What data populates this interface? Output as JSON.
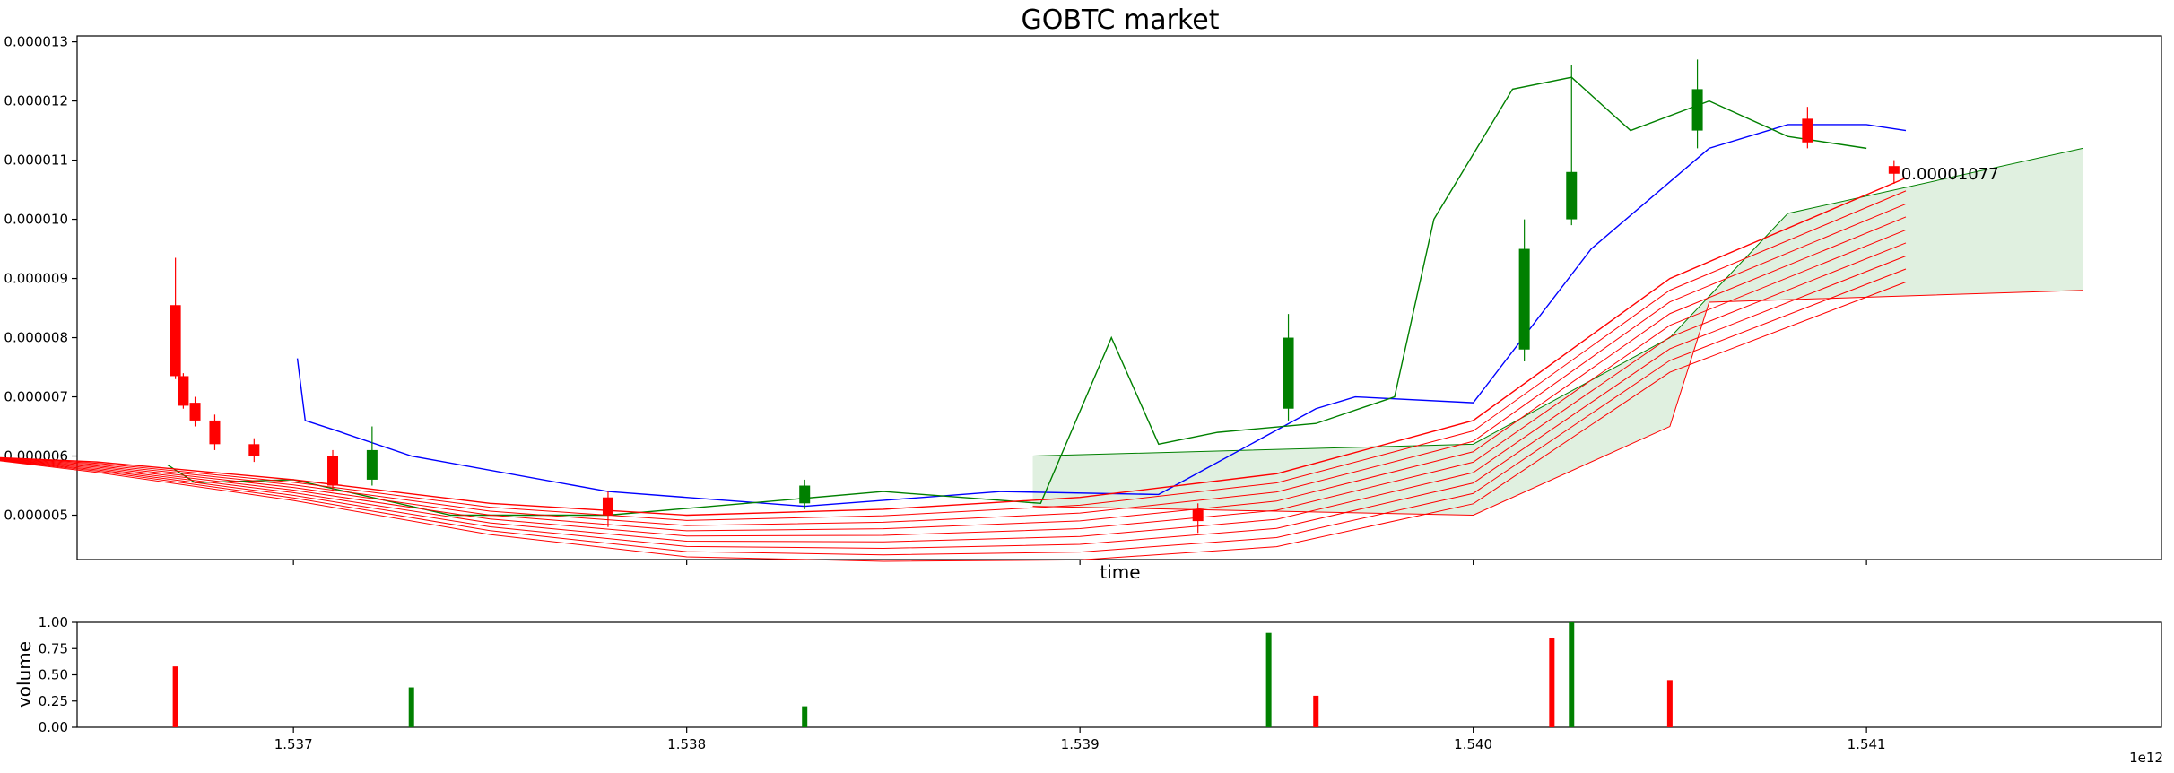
{
  "chart_data": [
    {
      "type": "candlestick",
      "title": "GOBTC market",
      "xlabel": "time",
      "ylabel": "",
      "x_unit": "ms epoch",
      "x_offset_label": "1e12",
      "xlim": [
        1536450000000.0,
        1541750000000.0
      ],
      "ylim": [
        4.25e-06,
        1.31e-05
      ],
      "xticks": [
        1537000000000.0,
        1538000000000.0,
        1539000000000.0,
        1540000000000.0,
        1541000000000.0
      ],
      "yticks": [
        {
          "v": 5e-06,
          "label": "0.000005"
        },
        {
          "v": 6e-06,
          "label": "0.000006"
        },
        {
          "v": 7e-06,
          "label": "0.000007"
        },
        {
          "v": 8e-06,
          "label": "0.000008"
        },
        {
          "v": 9e-06,
          "label": "0.000009"
        },
        {
          "v": 1e-05,
          "label": "0.000010"
        },
        {
          "v": 1.1e-05,
          "label": "0.000011"
        },
        {
          "v": 1.2e-05,
          "label": "0.000012"
        },
        {
          "v": 1.3e-05,
          "label": "0.000013"
        }
      ],
      "grid": false,
      "last_price_label": "0.00001077",
      "last_price_x": 1541070000000.0,
      "last_price_y": 1.077e-05,
      "colors": {
        "up": "#008000",
        "down": "#ff0000",
        "blue": "#0000ff",
        "green": "#008000",
        "red": "#ff0000",
        "brown": "#8b2500"
      },
      "candles_approx": [
        {
          "t": 1536700000000.0,
          "o": 8.55e-06,
          "c": 7.35e-06,
          "h": 9.35e-06,
          "l": 7.3e-06
        },
        {
          "t": 1536720000000.0,
          "o": 7.35e-06,
          "c": 6.85e-06,
          "h": 7.4e-06,
          "l": 6.8e-06
        },
        {
          "t": 1536750000000.0,
          "o": 6.9e-06,
          "c": 6.6e-06,
          "h": 7e-06,
          "l": 6.5e-06
        },
        {
          "t": 1536800000000.0,
          "o": 6.6e-06,
          "c": 6.2e-06,
          "h": 6.7e-06,
          "l": 6.1e-06
        },
        {
          "t": 1536900000000.0,
          "o": 6.2e-06,
          "c": 6e-06,
          "h": 6.3e-06,
          "l": 5.9e-06
        },
        {
          "t": 1537100000000.0,
          "o": 6e-06,
          "c": 5.5e-06,
          "h": 6.1e-06,
          "l": 5.4e-06
        },
        {
          "t": 1537200000000.0,
          "o": 5.6e-06,
          "c": 6.1e-06,
          "h": 6.5e-06,
          "l": 5.5e-06
        },
        {
          "t": 1537800000000.0,
          "o": 5.3e-06,
          "c": 5e-06,
          "h": 5.4e-06,
          "l": 4.8e-06
        },
        {
          "t": 1538300000000.0,
          "o": 5.2e-06,
          "c": 5.5e-06,
          "h": 5.6e-06,
          "l": 5.1e-06
        },
        {
          "t": 1539300000000.0,
          "o": 5.1e-06,
          "c": 4.9e-06,
          "h": 5.2e-06,
          "l": 4.7e-06
        },
        {
          "t": 1539530000000.0,
          "o": 6.8e-06,
          "c": 8e-06,
          "h": 8.4e-06,
          "l": 6.6e-06
        },
        {
          "t": 1540130000000.0,
          "o": 7.8e-06,
          "c": 9.5e-06,
          "h": 1e-05,
          "l": 7.6e-06
        },
        {
          "t": 1540250000000.0,
          "o": 1e-05,
          "c": 1.08e-05,
          "h": 1.26e-05,
          "l": 9.9e-06
        },
        {
          "t": 1540570000000.0,
          "o": 1.15e-05,
          "c": 1.22e-05,
          "h": 1.27e-05,
          "l": 1.12e-05
        },
        {
          "t": 1540850000000.0,
          "o": 1.17e-05,
          "c": 1.13e-05,
          "h": 1.19e-05,
          "l": 1.12e-05
        },
        {
          "t": 1541070000000.0,
          "o": 1.09e-05,
          "c": 1.077e-05,
          "h": 1.1e-05,
          "l": 1.06e-05
        }
      ],
      "series": [
        {
          "color": "blue",
          "x": [
            1537010000000.0,
            1537030000000.0,
            1537100000000.0,
            1537300000000.0,
            1537800000000.0,
            1538300000000.0,
            1538800000000.0,
            1539200000000.0,
            1539600000000.0,
            1539700000000.0,
            1540000000000.0,
            1540300000000.0,
            1540600000000.0,
            1540800000000.0,
            1541000000000.0,
            1541100000000.0
          ],
          "y": [
            7.65e-06,
            6.6e-06,
            6.45e-06,
            6e-06,
            5.4e-06,
            5.15e-06,
            5.4e-06,
            5.35e-06,
            6.8e-06,
            7e-06,
            6.9e-06,
            9.5e-06,
            1.12e-05,
            1.16e-05,
            1.16e-05,
            1.15e-05
          ]
        },
        {
          "color": "green",
          "x": [
            1536680000000.0,
            1536750000000.0,
            1537000000000.0,
            1537400000000.0,
            1537800000000.0,
            1538500000000.0,
            1538900000000.0,
            1539080000000.0,
            1539200000000.0,
            1539350000000.0,
            1539600000000.0,
            1539800000000.0,
            1539900000000.0,
            1540100000000.0,
            1540250000000.0,
            1540400000000.0,
            1540600000000.0,
            1540800000000.0,
            1541000000000.0
          ],
          "y": [
            5.85e-06,
            5.55e-06,
            5.6e-06,
            5e-06,
            5e-06,
            5.4e-06,
            5.2e-06,
            8e-06,
            6.2e-06,
            6.4e-06,
            6.55e-06,
            7e-06,
            1e-05,
            1.22e-05,
            1.24e-05,
            1.15e-05,
            1.2e-05,
            1.14e-05,
            1.12e-05
          ]
        },
        {
          "color": "red",
          "x": [
            1536150000000.0,
            1536500000000.0,
            1537000000000.0,
            1537500000000.0,
            1538000000000.0,
            1538500000000.0,
            1539000000000.0,
            1539500000000.0,
            1540000000000.0,
            1540500000000.0,
            1541100000000.0
          ],
          "y": [
            6e-06,
            5.9e-06,
            5.6e-06,
            5.2e-06,
            5e-06,
            5.1e-06,
            5.3e-06,
            5.7e-06,
            6.6e-06,
            9e-06,
            1.07e-05
          ]
        }
      ],
      "cloud_bottom": [
        1538880000000.0,
        5.15e-06,
        1540000000000.0,
        5e-06,
        1540500000000.0,
        6.5e-06,
        1540600000000.0,
        8.6e-06,
        1541550000000.0,
        8.8e-06
      ],
      "cloud_top": [
        1538880000000.0,
        6e-06,
        1540000000000.0,
        6.2e-06,
        1540500000000.0,
        8e-06,
        1540800000000.0,
        1.01e-05,
        1541550000000.0,
        1.12e-05
      ]
    },
    {
      "type": "bar",
      "ylabel": "volume",
      "ylim": [
        0,
        1.0
      ],
      "yticks": [
        {
          "v": 0.0,
          "label": "0.00"
        },
        {
          "v": 0.25,
          "label": "0.25"
        },
        {
          "v": 0.5,
          "label": "0.50"
        },
        {
          "v": 0.75,
          "label": "0.75"
        },
        {
          "v": 1.0,
          "label": "1.00"
        }
      ],
      "xtick_labels": [
        "1.537",
        "1.538",
        "1.539",
        "1.540",
        "1.541"
      ],
      "peaks": [
        {
          "t": 1536700000000.0,
          "v": 0.58,
          "color": "down"
        },
        {
          "t": 1537300000000.0,
          "v": 0.38,
          "color": "up"
        },
        {
          "t": 1538300000000.0,
          "v": 0.2,
          "color": "up"
        },
        {
          "t": 1539480000000.0,
          "v": 0.9,
          "color": "up"
        },
        {
          "t": 1539600000000.0,
          "v": 0.3,
          "color": "down"
        },
        {
          "t": 1540200000000.0,
          "v": 0.85,
          "color": "down"
        },
        {
          "t": 1540250000000.0,
          "v": 1.0,
          "color": "up"
        },
        {
          "t": 1540500000000.0,
          "v": 0.45,
          "color": "down"
        }
      ]
    }
  ]
}
